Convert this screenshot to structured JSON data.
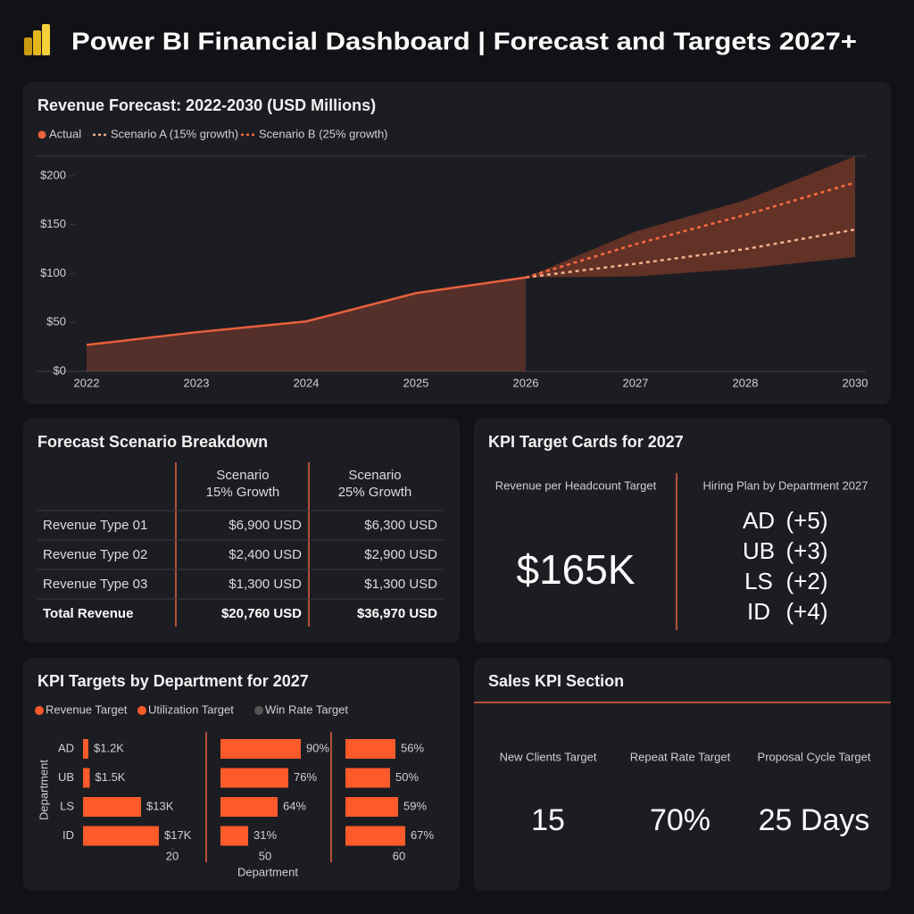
{
  "header": {
    "title": "Power BI Financial Dashboard | Forecast and Targets 2027+"
  },
  "chart_data": [
    {
      "type": "line",
      "title": "Revenue Forecast: 2022-2030 (USD Millions)",
      "categories": [
        "2022",
        "2023",
        "2024",
        "2025",
        "2026",
        "2027",
        "2028",
        "2030"
      ],
      "series": [
        {
          "name": "Actual",
          "color": "#e8603c",
          "dash": false,
          "area": true,
          "values": [
            27,
            40,
            51,
            80,
            96,
            null,
            null,
            null
          ]
        },
        {
          "name": "Scenario A (15% growth)",
          "color": "#f4b08a",
          "dash": true,
          "values": [
            null,
            null,
            null,
            null,
            96,
            110,
            125,
            145
          ]
        },
        {
          "name": "Scenario B (25% growth)",
          "color": "#ff6a3d",
          "dash": true,
          "values": [
            null,
            null,
            null,
            null,
            96,
            130,
            160,
            193
          ]
        }
      ],
      "band": {
        "color": "#7a3a28",
        "lower": [
          null,
          null,
          null,
          null,
          96,
          97,
          105,
          117
        ],
        "upper": [
          null,
          null,
          null,
          null,
          96,
          143,
          175,
          220
        ]
      },
      "ylim": [
        0,
        220
      ],
      "yticks": [
        {
          "value": 0,
          "label": "$0"
        },
        {
          "value": 50,
          "label": "$50"
        },
        {
          "value": 100,
          "label": "$100"
        },
        {
          "value": 150,
          "label": "$150"
        },
        {
          "value": 200,
          "label": "$200"
        }
      ],
      "grid": false
    },
    {
      "type": "hbar",
      "title": "KPI Targets by Department for 2027",
      "categories": [
        "AD",
        "UB",
        "LS",
        "ID"
      ],
      "xlabel": "Department",
      "ylabel": "Department",
      "series": [
        {
          "name": "Revenue Target",
          "color": "#ff5a2a",
          "values": [
            1.2,
            1.5,
            13,
            17
          ],
          "value_labels": [
            "$1.2K",
            "$1.5K",
            "$13K",
            "$17K"
          ],
          "xlim": [
            0,
            20
          ],
          "xticks": [
            20
          ]
        },
        {
          "name": "Utilization Target",
          "color": "#ff5a2a",
          "values": [
            90,
            76,
            64,
            31
          ],
          "value_labels": [
            "90%",
            "76%",
            "64%",
            "31%"
          ],
          "xlim": [
            0,
            100
          ],
          "xticks": [
            50
          ]
        },
        {
          "name": "Win Rate Target",
          "color": "#ff5a2a",
          "legend_color": "#555555",
          "values": [
            56,
            50,
            59,
            67
          ],
          "value_labels": [
            "56%",
            "50%",
            "59%",
            "67%"
          ],
          "xlim": [
            0,
            100
          ],
          "xticks": [
            60
          ]
        }
      ]
    }
  ],
  "scenario_table": {
    "title": "Forecast Scenario Breakdown",
    "columns": [
      [
        "Scenario",
        "15% Growth"
      ],
      [
        "Scenario",
        "25% Growth"
      ]
    ],
    "rows": [
      [
        "Revenue Type 01",
        "$6,900 USD",
        "$6,300 USD"
      ],
      [
        "Revenue Type 02",
        "$2,400 USD",
        "$2,900 USD"
      ],
      [
        "Revenue Type 03",
        "$1,300 USD",
        "$1,300 USD"
      ],
      [
        "Total Revenue",
        "$20,760 USD",
        "$36,970 USD"
      ]
    ]
  },
  "kpi_cards": {
    "title": "KPI Target Cards for 2027",
    "revenue_label": "Revenue per Headcount Target",
    "revenue_value": "$165K",
    "hiring_label": "Hiring Plan by Department 2027",
    "hiring": [
      {
        "dept": "AD",
        "change": "(+5)"
      },
      {
        "dept": "UB",
        "change": "(+3)"
      },
      {
        "dept": "LS",
        "change": "(+2)"
      },
      {
        "dept": "ID",
        "change": "(+4)"
      }
    ]
  },
  "sales_kpi": {
    "title": "Sales KPI Section",
    "items": [
      {
        "label": "New Clients Target",
        "value": "15"
      },
      {
        "label": "Repeat Rate Target",
        "value": "70%"
      },
      {
        "label": "Proposal Cycle Target",
        "value": "25 Days"
      }
    ]
  }
}
